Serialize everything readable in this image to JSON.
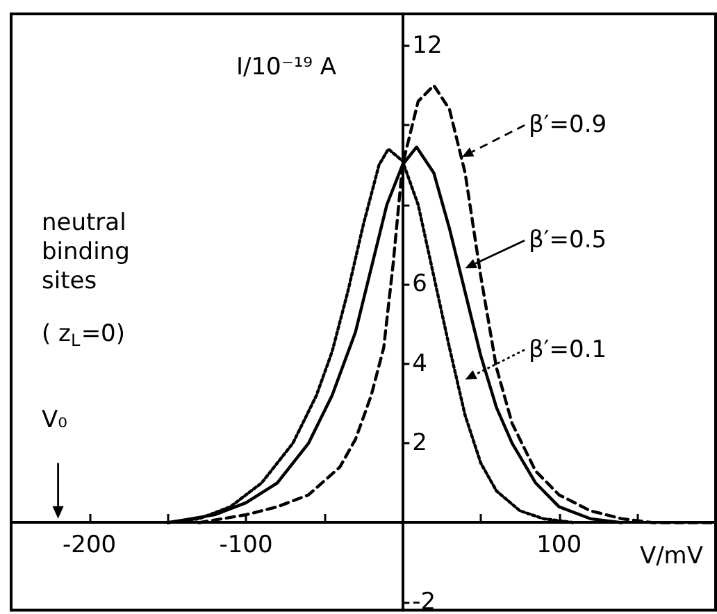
{
  "chart_data": {
    "type": "line",
    "xlabel": "V/mV",
    "ylabel": "I/10⁻¹⁹ A",
    "annotations": [
      "neutral binding sites",
      "( z$_{L}$=0)",
      "V₀"
    ],
    "legend": "right",
    "xlim": [
      -250,
      200
    ],
    "ylim": [
      -2.2,
      12.8
    ],
    "xticks": [
      -200,
      {
        "value": -150,
        "label": null
      },
      -100,
      {
        "value": -50,
        "label": null
      },
      {
        "value": 50,
        "label": null
      },
      100,
      {
        "value": 150,
        "label": null
      }
    ],
    "yticks": [
      -2,
      2,
      4,
      6,
      {
        "value": 8,
        "label": null
      },
      {
        "value": 10,
        "label": null
      },
      12
    ],
    "marker": "none",
    "series": [
      {
        "name": "β′=0.9",
        "color": "#000000",
        "line_style": "dashed",
        "x": [
          -130,
          -100,
          -80,
          -60,
          -40,
          -30,
          -20,
          -12,
          -6,
          0,
          10,
          20,
          30,
          40,
          50,
          60,
          70,
          85,
          100,
          120,
          140,
          160,
          200
        ],
        "values": [
          0,
          0.2,
          0.4,
          0.7,
          1.4,
          2.1,
          3.2,
          4.4,
          6.5,
          9.0,
          10.6,
          11.0,
          10.4,
          8.8,
          6.2,
          3.9,
          2.5,
          1.3,
          0.7,
          0.3,
          0.1,
          0,
          0
        ]
      },
      {
        "name": "β′=0.5",
        "color": "#000000",
        "line_style": "solid",
        "x": [
          -150,
          -120,
          -100,
          -80,
          -60,
          -45,
          -30,
          -20,
          -10,
          0,
          9,
          20,
          30,
          40,
          50,
          60,
          70,
          85,
          100,
          120,
          140
        ],
        "values": [
          0,
          0.2,
          0.5,
          1.0,
          2.0,
          3.2,
          4.8,
          6.4,
          8.0,
          9.0,
          9.45,
          8.8,
          7.4,
          5.8,
          4.2,
          2.9,
          2.0,
          1.0,
          0.4,
          0.1,
          0
        ]
      },
      {
        "name": "β′=0.1",
        "color": "#000000",
        "line_style": "dotted",
        "x": [
          -150,
          -130,
          -110,
          -90,
          -70,
          -55,
          -45,
          -35,
          -25,
          -15,
          -9,
          0,
          10,
          20,
          30,
          40,
          50,
          60,
          75,
          90,
          110
        ],
        "values": [
          0,
          0.1,
          0.4,
          1.0,
          2.0,
          3.2,
          4.3,
          5.8,
          7.5,
          9.0,
          9.4,
          9.1,
          8.0,
          6.2,
          4.4,
          2.7,
          1.5,
          0.8,
          0.3,
          0.1,
          0
        ]
      }
    ]
  }
}
